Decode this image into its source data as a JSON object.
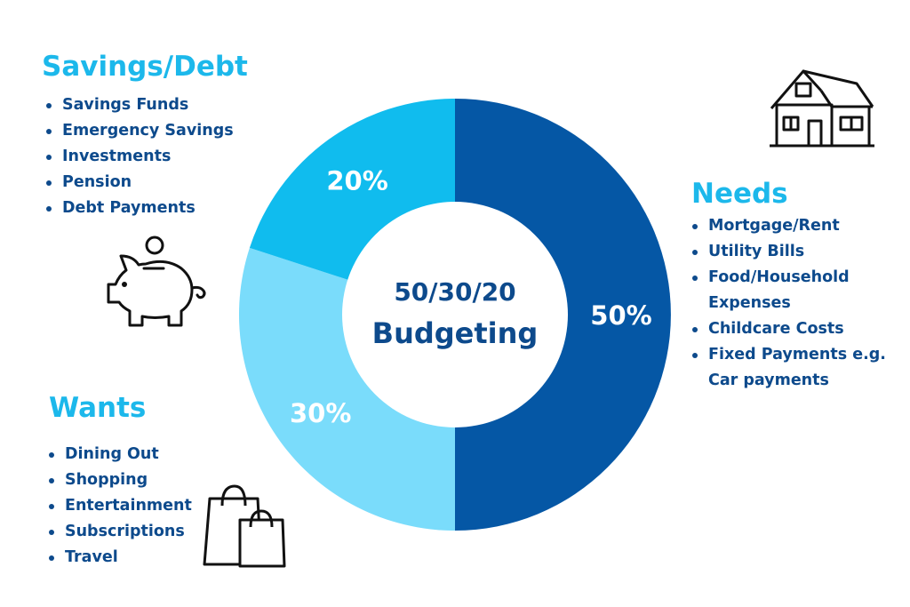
{
  "colors": {
    "needs": "#0557a5",
    "wants": "#7adcfb",
    "savings": "#10bcee",
    "heading_light": "#1cb8eb",
    "center_text": "#0d4a8c",
    "list_text": "#0d4a8c"
  },
  "chart_data": {
    "type": "pie",
    "style": "donut",
    "center_label": [
      "50/30/20",
      "Budgeting"
    ],
    "slices": [
      {
        "name": "Needs",
        "value": 50,
        "label": "50%",
        "color": "#0557a5"
      },
      {
        "name": "Wants",
        "value": 30,
        "label": "30%",
        "color": "#7adcfb"
      },
      {
        "name": "Savings/Debt",
        "value": 20,
        "label": "20%",
        "color": "#10bcee"
      }
    ]
  },
  "sections": {
    "savings": {
      "title": "Savings/Debt",
      "items": [
        "Savings Funds",
        "Emergency Savings",
        "Investments",
        "Pension",
        "Debt Payments"
      ],
      "icon": "piggy-bank-icon"
    },
    "needs": {
      "title": "Needs",
      "items": [
        "Mortgage/Rent",
        "Utility Bills",
        "Food/Household",
        "Expenses",
        "Childcare Costs",
        "Fixed Payments e.g.",
        "Car payments"
      ],
      "icon": "house-icon"
    },
    "wants": {
      "title": "Wants",
      "items": [
        "Dining Out",
        "Shopping",
        "Entertainment",
        "Subscriptions",
        "Travel"
      ],
      "icon": "shopping-bags-icon"
    }
  }
}
